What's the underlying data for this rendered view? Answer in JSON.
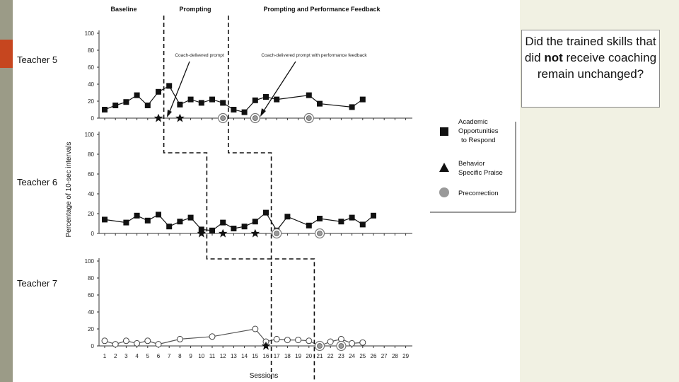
{
  "slide": {
    "question_pre": "Did the trained skills that did ",
    "question_bold": "not",
    "question_post": " receive coaching remain unchanged?"
  },
  "chart_data": {
    "type": "line",
    "title": "",
    "phase_labels": [
      "Baseline",
      "Prompting",
      "Prompting and Performance Feedback"
    ],
    "xlabel": "Sessions",
    "ylabel": "Percentage of 10-sec intervals",
    "xlim": [
      1,
      29
    ],
    "ylim": [
      0,
      100
    ],
    "x_ticks": [
      1,
      2,
      3,
      4,
      5,
      6,
      7,
      8,
      9,
      10,
      11,
      12,
      13,
      14,
      15,
      16,
      17,
      18,
      19,
      20,
      21,
      22,
      23,
      24,
      25,
      26,
      27,
      28,
      29
    ],
    "y_ticks": [
      0,
      20,
      40,
      60,
      80,
      100
    ],
    "legend": [
      {
        "name": "Academic Opportunities to Respond",
        "marker": "square"
      },
      {
        "name": "Behavior Specific Praise",
        "marker": "triangle"
      },
      {
        "name": "Precorrection",
        "marker": "circle"
      }
    ],
    "panels": [
      {
        "name": "Teacher 5",
        "phase_changes": [
          6.5,
          12.5
        ],
        "annotations": [
          "Coach-delivered prompt",
          "Coach-delivered prompt with performance feedback"
        ],
        "series": [
          {
            "name": "Academic Opportunities to Respond",
            "marker": "square",
            "x": [
              1,
              2,
              3,
              4,
              5,
              6,
              7,
              8,
              9,
              10,
              11,
              12,
              13,
              14,
              15,
              16,
              17,
              20,
              21,
              24,
              25
            ],
            "y": [
              10,
              15,
              19,
              27,
              15,
              31,
              38,
              16,
              22,
              18,
              22,
              18,
              10,
              7,
              21,
              25,
              22,
              27,
              17,
              13,
              22
            ]
          },
          {
            "name": "Behavior Specific Praise",
            "marker": "star",
            "x": [
              6,
              8
            ],
            "y": [
              0,
              0
            ]
          },
          {
            "name": "Precorrection",
            "marker": "circle",
            "x": [
              12,
              15,
              20
            ],
            "y": [
              0,
              0,
              0
            ]
          }
        ]
      },
      {
        "name": "Teacher 6",
        "phase_changes": [
          10.5,
          16.5
        ],
        "series": [
          {
            "name": "Academic Opportunities to Respond",
            "marker": "square",
            "x": [
              1,
              3,
              4,
              5,
              6,
              7,
              8,
              9,
              10,
              11,
              12,
              13,
              14,
              15,
              16,
              17,
              18,
              20,
              21,
              23,
              24,
              25,
              26
            ],
            "y": [
              14,
              11,
              18,
              13,
              19,
              7,
              12,
              16,
              4,
              3,
              11,
              5,
              7,
              12,
              21,
              3,
              17,
              8,
              15,
              12,
              16,
              9,
              18
            ]
          },
          {
            "name": "Behavior Specific Praise",
            "marker": "star",
            "x": [
              10,
              12,
              15
            ],
            "y": [
              0,
              0,
              0
            ]
          },
          {
            "name": "Precorrection",
            "marker": "circle",
            "x": [
              17,
              21
            ],
            "y": [
              0,
              0
            ]
          }
        ]
      },
      {
        "name": "Teacher 7",
        "phase_changes": [
          16.5,
          20.5
        ],
        "series": [
          {
            "name": "Academic Opportunities to Respond",
            "marker": "circle-open",
            "x": [
              1,
              2,
              3,
              4,
              5,
              6,
              8,
              11,
              15,
              16,
              17,
              18,
              19,
              20,
              21,
              22,
              23,
              24,
              25
            ],
            "y": [
              6,
              2,
              6,
              3,
              6,
              2,
              8,
              11,
              20,
              5,
              8,
              7,
              7,
              6,
              0,
              5,
              8,
              3,
              4
            ]
          },
          {
            "name": "Behavior Specific Praise",
            "marker": "star",
            "x": [
              16
            ],
            "y": [
              0
            ]
          },
          {
            "name": "Precorrection",
            "marker": "circle",
            "x": [
              21,
              23
            ],
            "y": [
              0,
              0
            ]
          }
        ]
      }
    ]
  }
}
